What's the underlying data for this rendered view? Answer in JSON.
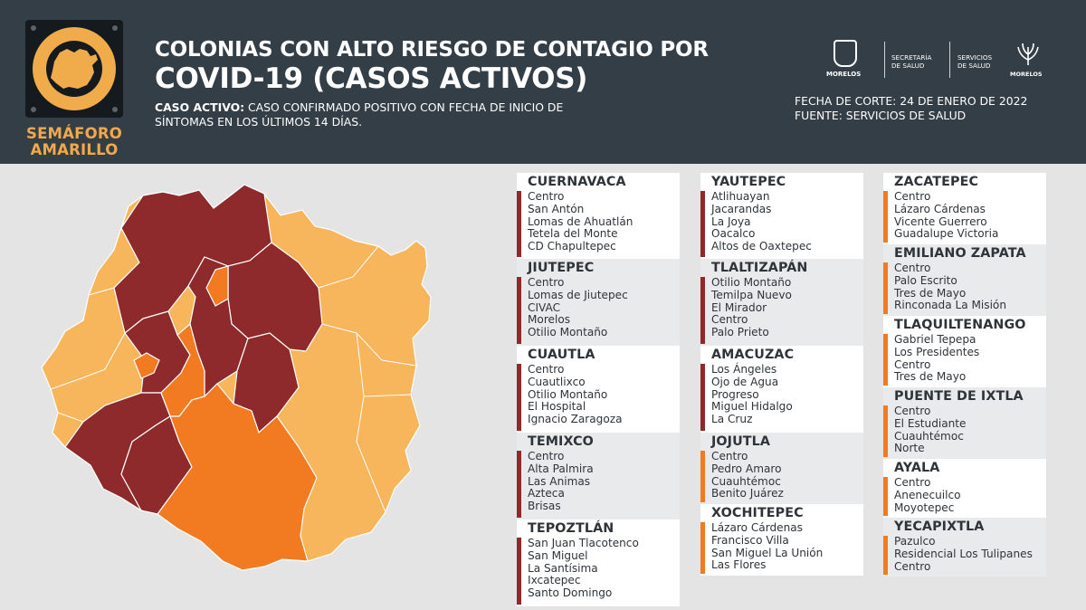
{
  "header": {
    "semaforo": "SEMÁFORO AMARILLO",
    "title_line1": "COLONIAS CON ALTO RIESGO DE CONTAGIO POR",
    "title_line2": "COVID-19 (CASOS ACTIVOS)",
    "definition_label": "CASO ACTIVO:",
    "definition_text": "CASO CONFIRMADO POSITIVO CON FECHA DE INICIO DE SÍNTOMAS EN LOS ÚLTIMOS 14 DÍAS.",
    "cutoff": "FECHA DE CORTE: 24 DE ENERO DE 2022",
    "source": "FUENTE: SERVICIOS DE SALUD",
    "logos": {
      "morelos": "MORELOS",
      "secretaria_1": "SECRETARÍA",
      "secretaria_2": "DE SALUD",
      "servicios_1": "SERVICIOS",
      "servicios_2": "DE SALUD",
      "morelos_2": "MORELOS"
    }
  },
  "colors": {
    "header_bg": "#333e47",
    "semaforo_yellow": "#f3a84a",
    "map_light_orange": "#f7b65b",
    "map_orange": "#f27a21",
    "map_dark_red": "#8e2a2c",
    "bar_red": "#8e2a2c",
    "bar_orange": "#f27a21"
  },
  "municipalities": [
    {
      "name": "CUERNAVACA",
      "level": "red",
      "colonias": [
        "Centro",
        "San Antón",
        "Lomas de Ahuatlán",
        "Tetela del Monte",
        "CD Chapultepec"
      ]
    },
    {
      "name": "JIUTEPEC",
      "level": "red",
      "colonias": [
        "Centro",
        "Lomas de Jiutepec",
        "CIVAC",
        "Morelos",
        "Otilio Montaño"
      ]
    },
    {
      "name": "CUAUTLA",
      "level": "red",
      "colonias": [
        "Centro",
        "Cuautlixco",
        "Otilio Montaño",
        "El Hospital",
        "Ignacio Zaragoza"
      ]
    },
    {
      "name": "TEMIXCO",
      "level": "red",
      "colonias": [
        "Centro",
        "Alta Palmira",
        "Las Animas",
        "Azteca",
        "Brisas"
      ]
    },
    {
      "name": "TEPOZTLÁN",
      "level": "red",
      "colonias": [
        "San Juan Tlacotenco",
        "San Miguel",
        "La Santísima",
        "Ixcatepec",
        "Santo Domingo"
      ]
    },
    {
      "name": "YAUTEPEC",
      "level": "red",
      "colonias": [
        "Atlihuayan",
        "Jacarandas",
        "La Joya",
        "Oacalco",
        "Altos de Oaxtepec"
      ]
    },
    {
      "name": "TLALTIZAPÁN",
      "level": "red",
      "colonias": [
        "Otilio Montaño",
        "Temilpa Nuevo",
        "El Mirador",
        "Centro",
        "Palo Prieto"
      ]
    },
    {
      "name": "AMACUZAC",
      "level": "red",
      "colonias": [
        "Los Ángeles",
        "Ojo de Agua",
        "Progreso",
        "Miguel Hidalgo",
        "La Cruz"
      ]
    },
    {
      "name": "JOJUTLA",
      "level": "orange",
      "colonias": [
        "Centro",
        "Pedro Amaro",
        "Cuauhtémoc",
        "Benito Juárez"
      ]
    },
    {
      "name": "XOCHITEPEC",
      "level": "orange",
      "colonias": [
        "Lázaro Cárdenas",
        "Francisco Villa",
        "San Miguel La Unión",
        "Las Flores"
      ]
    },
    {
      "name": "ZACATEPEC",
      "level": "orange",
      "colonias": [
        "Centro",
        "Lázaro Cárdenas",
        "Vicente Guerrero",
        "Guadalupe Victoria"
      ]
    },
    {
      "name": "EMILIANO ZAPATA",
      "level": "orange",
      "colonias": [
        "Centro",
        "Palo Escrito",
        "Tres de Mayo",
        "Rinconada La Misión"
      ]
    },
    {
      "name": "TLAQUILTENANGO",
      "level": "orange",
      "colonias": [
        "Gabriel Tepepa",
        "Los Presidentes",
        "Centro",
        "Tres de Mayo"
      ]
    },
    {
      "name": "PUENTE DE IXTLA",
      "level": "orange",
      "colonias": [
        "Centro",
        "El Estudiante",
        "Cuauhtémoc",
        "Norte"
      ]
    },
    {
      "name": "AYALA",
      "level": "orange",
      "colonias": [
        "Centro",
        "Anenecuilco",
        "Moyotepec"
      ]
    },
    {
      "name": "YECAPIXTLA",
      "level": "orange",
      "colonias": [
        "Pazulco",
        "Residencial Los Tulipanes",
        "Centro"
      ]
    }
  ]
}
